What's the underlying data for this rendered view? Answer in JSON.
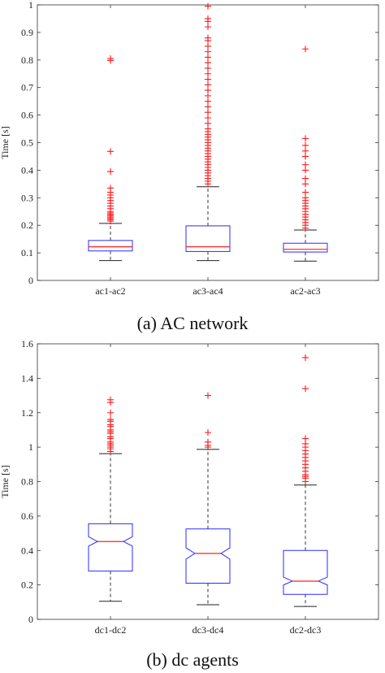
{
  "chart_data": [
    {
      "type": "boxplot",
      "caption": "(a)  AC network",
      "ylabel": "Time [s]",
      "ylim": [
        0,
        1
      ],
      "yticks": [
        0,
        0.1,
        0.2,
        0.3,
        0.4,
        0.5,
        0.6,
        0.7,
        0.8,
        0.9,
        1
      ],
      "notched": false,
      "categories": [
        "ac1-ac2",
        "ac3-ac4",
        "ac2-ac3"
      ],
      "boxes": [
        {
          "label": "ac1-ac2",
          "whisker_low": 0.072,
          "q1": 0.107,
          "median": 0.122,
          "q3": 0.145,
          "whisker_high": 0.207,
          "outliers": [
            0.215,
            0.22,
            0.225,
            0.23,
            0.235,
            0.24,
            0.245,
            0.25,
            0.26,
            0.27,
            0.28,
            0.29,
            0.3,
            0.31,
            0.32,
            0.335,
            0.395,
            0.468,
            0.798,
            0.805
          ]
        },
        {
          "label": "ac3-ac4",
          "whisker_low": 0.072,
          "q1": 0.105,
          "median": 0.122,
          "q3": 0.198,
          "whisker_high": 0.34,
          "outliers": [
            0.35,
            0.36,
            0.37,
            0.38,
            0.39,
            0.4,
            0.41,
            0.42,
            0.43,
            0.44,
            0.45,
            0.46,
            0.47,
            0.48,
            0.49,
            0.5,
            0.51,
            0.52,
            0.53,
            0.54,
            0.55,
            0.57,
            0.59,
            0.61,
            0.63,
            0.65,
            0.67,
            0.69,
            0.71,
            0.73,
            0.75,
            0.77,
            0.79,
            0.81,
            0.83,
            0.85,
            0.87,
            0.88,
            0.92,
            0.94,
            0.95,
            0.995
          ]
        },
        {
          "label": "ac2-ac3",
          "whisker_low": 0.07,
          "q1": 0.103,
          "median": 0.113,
          "q3": 0.135,
          "whisker_high": 0.183,
          "outliers": [
            0.19,
            0.2,
            0.21,
            0.22,
            0.23,
            0.24,
            0.25,
            0.26,
            0.27,
            0.28,
            0.29,
            0.3,
            0.32,
            0.35,
            0.37,
            0.4,
            0.42,
            0.45,
            0.47,
            0.49,
            0.515,
            0.84
          ]
        }
      ]
    },
    {
      "type": "boxplot",
      "caption": "(b)  dc agents",
      "ylabel": "Time [s]",
      "ylim": [
        0,
        1.6
      ],
      "yticks": [
        0,
        0.2,
        0.4,
        0.6,
        0.8,
        1,
        1.2,
        1.4,
        1.6
      ],
      "notched": true,
      "categories": [
        "dc1-dc2",
        "dc3-dc4",
        "dc2-dc3"
      ],
      "boxes": [
        {
          "label": "dc1-dc2",
          "whisker_low": 0.105,
          "q1": 0.28,
          "median": 0.452,
          "q3": 0.555,
          "whisker_high": 0.962,
          "notch_low": 0.425,
          "notch_high": 0.48,
          "outliers": [
            0.975,
            0.99,
            1.0,
            1.01,
            1.02,
            1.03,
            1.05,
            1.06,
            1.08,
            1.09,
            1.1,
            1.12,
            1.13,
            1.15,
            1.16,
            1.2,
            1.26,
            1.275
          ]
        },
        {
          "label": "dc3-dc4",
          "whisker_low": 0.085,
          "q1": 0.21,
          "median": 0.383,
          "q3": 0.525,
          "whisker_high": 0.987,
          "notch_low": 0.35,
          "notch_high": 0.415,
          "outliers": [
            1.0,
            1.01,
            1.03,
            1.085,
            1.3
          ]
        },
        {
          "label": "dc2-dc3",
          "whisker_low": 0.075,
          "q1": 0.145,
          "median": 0.222,
          "q3": 0.4,
          "whisker_high": 0.78,
          "notch_low": 0.2,
          "notch_high": 0.245,
          "outliers": [
            0.8,
            0.82,
            0.83,
            0.84,
            0.86,
            0.88,
            0.9,
            0.92,
            0.94,
            0.96,
            0.98,
            1.0,
            1.02,
            1.05,
            1.34,
            1.52
          ]
        }
      ]
    }
  ]
}
